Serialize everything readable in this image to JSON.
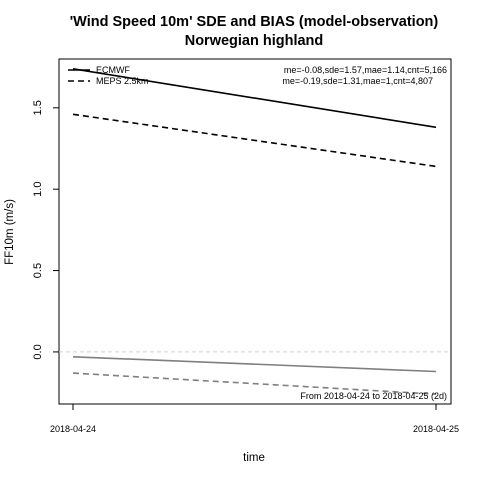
{
  "chart_data": {
    "type": "line",
    "title": "'Wind Speed 10m' SDE and BIAS (model-observation)",
    "subtitle": "Norwegian highland",
    "xlabel": "time",
    "ylabel": "FF10m (m/s)",
    "x": [
      "2018-04-24",
      "2018-04-25"
    ],
    "xticks": [
      "2018-04-24",
      "2018-04-25"
    ],
    "yticks": [
      "0.0",
      "0.5",
      "1.0",
      "1.5"
    ],
    "ylim": [
      -0.32,
      1.8
    ],
    "grid": false,
    "zero_line": 0,
    "series": [
      {
        "name": "ECMWF",
        "metric": "SDE",
        "values": [
          1.74,
          1.38
        ],
        "color": "#000000",
        "dash": "solid"
      },
      {
        "name": "MEPS 2.5km",
        "metric": "SDE",
        "values": [
          1.46,
          1.14
        ],
        "color": "#000000",
        "dash": "dashed"
      },
      {
        "name": "ECMWF",
        "metric": "BIAS",
        "values": [
          -0.03,
          -0.12
        ],
        "color": "#7f7f7f",
        "dash": "solid"
      },
      {
        "name": "MEPS 2.5km",
        "metric": "BIAS",
        "values": [
          -0.13,
          -0.26
        ],
        "color": "#7f7f7f",
        "dash": "dashed"
      }
    ],
    "legend": {
      "placement": "top-left",
      "entries": [
        {
          "label": "ECMWF",
          "dash": "solid"
        },
        {
          "label": "MEPS 2.5km",
          "dash": "dashed"
        }
      ]
    },
    "stats": [
      "me=-0.08,sde=1.57,mae=1.14,cnt=5,166",
      "me=-0.19,sde=1.31,mae=1,cnt=4,807"
    ],
    "date_range_note": "From 2018-04-24 to 2018-04-25 (2d)"
  }
}
